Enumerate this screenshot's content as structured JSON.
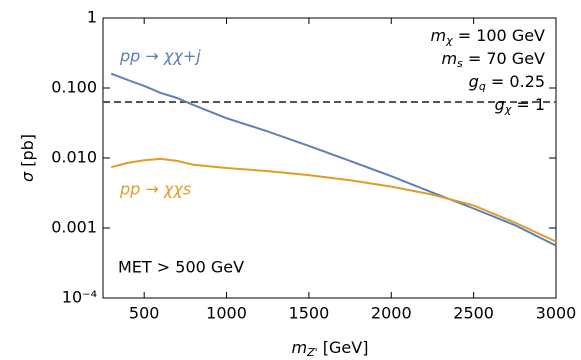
{
  "chart_data": {
    "type": "line",
    "log_y": true,
    "xlabel": {
      "main": "m",
      "sub": "Z'",
      "rest": " [GeV]"
    },
    "ylabel": {
      "main": "σ",
      "rest": " [pb]"
    },
    "xlim": [
      250,
      3000
    ],
    "xticks": [
      500,
      1000,
      1500,
      2000,
      2500,
      3000
    ],
    "ylim": [
      0.0001,
      1
    ],
    "yticks": [
      {
        "value": 0.0001,
        "label": "10⁻⁴"
      },
      {
        "value": 0.001,
        "label": "0.001"
      },
      {
        "value": 0.01,
        "label": "0.010"
      },
      {
        "value": 0.1,
        "label": "0.100"
      },
      1
    ],
    "x": [
      300,
      400,
      500,
      600,
      700,
      800,
      1000,
      1250,
      1500,
      1750,
      2000,
      2250,
      2500,
      2750,
      3000
    ],
    "series": [
      {
        "name": "pp → χχ+j",
        "color": "#5e81b5",
        "values": [
          0.16,
          0.13,
          0.107,
          0.085,
          0.072,
          0.057,
          0.037,
          0.024,
          0.0149,
          0.0091,
          0.0055,
          0.0032,
          0.0019,
          0.0011,
          0.00056
        ]
      },
      {
        "name": "pp → χχs",
        "color": "#e19c24",
        "values": [
          0.0074,
          0.0085,
          0.0093,
          0.0097,
          0.0091,
          0.008,
          0.0072,
          0.0065,
          0.0057,
          0.0048,
          0.0039,
          0.003,
          0.0021,
          0.0012,
          0.00064
        ]
      }
    ],
    "hline": {
      "value": 0.063,
      "color": "#555555"
    },
    "parameters": [
      {
        "main": "m",
        "sub": "χ",
        "rest": " = 100 GeV"
      },
      {
        "main": "m",
        "sub": "s",
        "rest": " = 70 GeV"
      },
      {
        "main": "g",
        "sub": "q",
        "rest": " = 0.25"
      },
      {
        "main": "g",
        "sub": "χ",
        "rest": " = 1"
      }
    ],
    "annotation": "MET > 500 GeV"
  }
}
